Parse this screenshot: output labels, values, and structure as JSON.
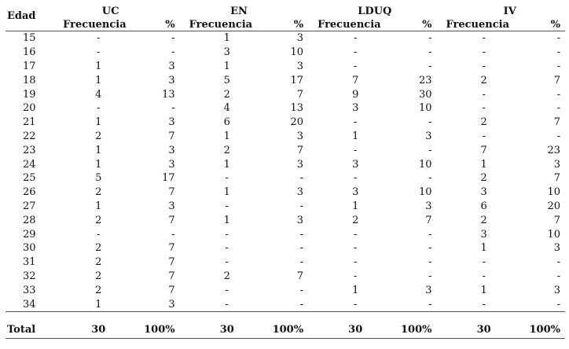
{
  "table": {
    "age_header": "Edad",
    "groups": [
      {
        "name": "UC",
        "freq_label": "Frecuencia",
        "pct_label": "%"
      },
      {
        "name": "EN",
        "freq_label": "Frecuencia",
        "pct_label": "%"
      },
      {
        "name": "LDUQ",
        "freq_label": "Frecuencia",
        "pct_label": "%"
      },
      {
        "name": "IV",
        "freq_label": "Frecuencia",
        "pct_label": "%"
      }
    ],
    "rows": [
      [
        "15",
        "-",
        "-",
        "1",
        "3",
        "-",
        "-",
        "-",
        "-"
      ],
      [
        "16",
        "-",
        "-",
        "3",
        "10",
        "-",
        "-",
        "-",
        "-"
      ],
      [
        "17",
        "1",
        "3",
        "1",
        "3",
        "-",
        "-",
        "-",
        "-"
      ],
      [
        "18",
        "1",
        "3",
        "5",
        "17",
        "7",
        "23",
        "2",
        "7"
      ],
      [
        "19",
        "4",
        "13",
        "2",
        "7",
        "9",
        "30",
        "-",
        "-"
      ],
      [
        "20",
        "-",
        "-",
        "4",
        "13",
        "3",
        "10",
        "-",
        "-"
      ],
      [
        "21",
        "1",
        "3",
        "6",
        "20",
        "-",
        "-",
        "2",
        "7"
      ],
      [
        "22",
        "2",
        "7",
        "1",
        "3",
        "1",
        "3",
        "-",
        "-"
      ],
      [
        "23",
        "1",
        "3",
        "2",
        "7",
        "-",
        "-",
        "7",
        "23"
      ],
      [
        "24",
        "1",
        "3",
        "1",
        "3",
        "3",
        "10",
        "1",
        "3"
      ],
      [
        "25",
        "5",
        "17",
        "-",
        "-",
        "-",
        "-",
        "2",
        "7"
      ],
      [
        "26",
        "2",
        "7",
        "1",
        "3",
        "3",
        "10",
        "3",
        "10"
      ],
      [
        "27",
        "1",
        "3",
        "-",
        "-",
        "1",
        "3",
        "6",
        "20"
      ],
      [
        "28",
        "2",
        "7",
        "1",
        "3",
        "2",
        "7",
        "2",
        "7"
      ],
      [
        "29",
        "-",
        "-",
        "-",
        "-",
        "-",
        "-",
        "3",
        "10"
      ],
      [
        "30",
        "2",
        "7",
        "-",
        "-",
        "-",
        "-",
        "1",
        "3"
      ],
      [
        "31",
        "2",
        "7",
        "-",
        "-",
        "-",
        "-",
        "-",
        "-"
      ],
      [
        "32",
        "2",
        "7",
        "2",
        "7",
        "-",
        "-",
        "-",
        "-"
      ],
      [
        "33",
        "2",
        "7",
        "-",
        "-",
        "1",
        "3",
        "1",
        "3"
      ],
      [
        "34",
        "1",
        "3",
        "-",
        "-",
        "-",
        "-",
        "-",
        "-"
      ]
    ],
    "total": [
      "Total",
      "30",
      "100%",
      "30",
      "100%",
      "30",
      "100%",
      "30",
      "100%"
    ]
  }
}
